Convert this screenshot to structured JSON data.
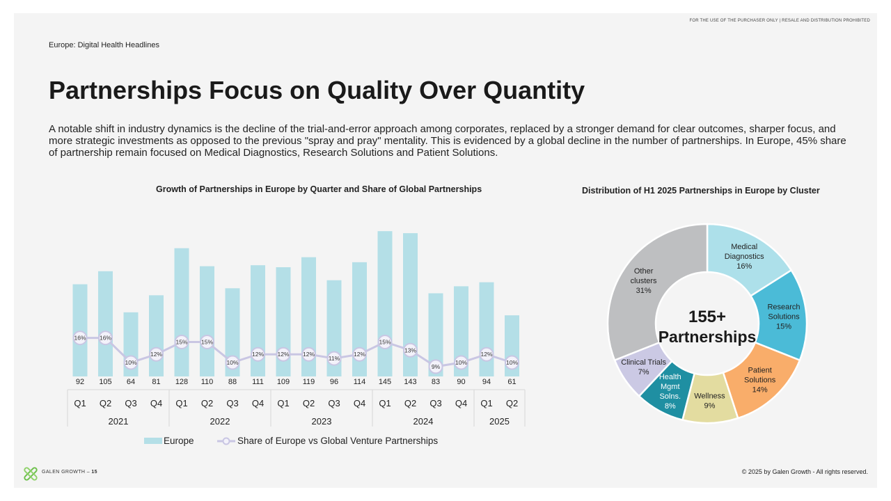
{
  "header": {
    "disclaimer": "FOR THE USE OF THE PURCHASER ONLY | RESALE AND DISTRIBUTION PROHIBITED",
    "eyebrow": "Europe: Digital Health Headlines",
    "title": "Partnerships Focus on Quality Over Quantity",
    "intro": "A notable shift in industry dynamics is the decline of the trial-and-error approach among corporates, replaced by a stronger demand for clear outcomes, sharper focus, and more strategic investments as opposed to the previous \"spray and pray\" mentality. This is evidenced by a global decline in the number of partnerships. In Europe, 45% share of partnership remain focused on Medical Diagnostics, Research Solutions and Patient Solutions."
  },
  "footer": {
    "brand": "GALEN GROWTH",
    "page_number": "15",
    "copyright": "© 2025 by Galen Growth  - All rights reserved."
  },
  "colors": {
    "bar": "#b4dfe7",
    "line": "#c9c6e3",
    "line_marker_fill": "#f3f2fa"
  },
  "chart_data": [
    {
      "type": "bar",
      "title": "Growth of Partnerships in Europe by Quarter and Share of Global Partnerships",
      "categories": [
        "Q1",
        "Q2",
        "Q3",
        "Q4",
        "Q1",
        "Q2",
        "Q3",
        "Q4",
        "Q1",
        "Q2",
        "Q3",
        "Q4",
        "Q1",
        "Q2",
        "Q3",
        "Q4",
        "Q1",
        "Q2"
      ],
      "year_groups": [
        {
          "label": "2021",
          "count": 4
        },
        {
          "label": "2022",
          "count": 4
        },
        {
          "label": "2023",
          "count": 4
        },
        {
          "label": "2024",
          "count": 4
        },
        {
          "label": "2025",
          "count": 2
        }
      ],
      "series": [
        {
          "name": "Europe",
          "kind": "bar",
          "values": [
            92,
            105,
            64,
            81,
            128,
            110,
            88,
            111,
            109,
            119,
            96,
            114,
            145,
            143,
            83,
            90,
            94,
            61
          ]
        },
        {
          "name": "Share of Europe vs Global Venture Partnerships",
          "kind": "line",
          "values": [
            16,
            16,
            10,
            12,
            15,
            15,
            10,
            12,
            12,
            12,
            11,
            12,
            15,
            13,
            9,
            10,
            12,
            10
          ],
          "labels": [
            "16%",
            "16%",
            "10%",
            "12%",
            "15%",
            "15%",
            "10%",
            "12%",
            "12%",
            "12%",
            "11%",
            "12%",
            "15%",
            "13%",
            "9%",
            "10%",
            "12%",
            "10%"
          ]
        }
      ],
      "ylim": [
        0,
        150
      ],
      "legend_position": "bottom"
    },
    {
      "type": "pie",
      "title": "Distribution of H1 2025 Partnerships in Europe by Cluster",
      "center_label": [
        "155+",
        "Partnerships"
      ],
      "slices": [
        {
          "label": [
            "Medical",
            "Diagnostics"
          ],
          "pct_label": "16%",
          "value": 16,
          "color": "#ade0ea"
        },
        {
          "label": [
            "Research",
            "Solutions"
          ],
          "pct_label": "15%",
          "value": 15,
          "color": "#4bbbd7"
        },
        {
          "label": [
            "Patient",
            "Solutions"
          ],
          "pct_label": "14%",
          "value": 14,
          "color": "#f9ad6a"
        },
        {
          "label": [
            "Wellness"
          ],
          "pct_label": "9%",
          "value": 9,
          "color": "#e3dca0"
        },
        {
          "label": [
            "Health",
            "Mgmt",
            "Solns."
          ],
          "pct_label": "8%",
          "value": 8,
          "color": "#1f8fa2",
          "light_text": true
        },
        {
          "label": [
            "Clinical Trials"
          ],
          "pct_label": "7%",
          "value": 7,
          "color": "#cbc9e4"
        },
        {
          "label": [
            "Other",
            "clusters"
          ],
          "pct_label": "31%",
          "value": 31,
          "color": "#bebfc1"
        }
      ]
    }
  ]
}
